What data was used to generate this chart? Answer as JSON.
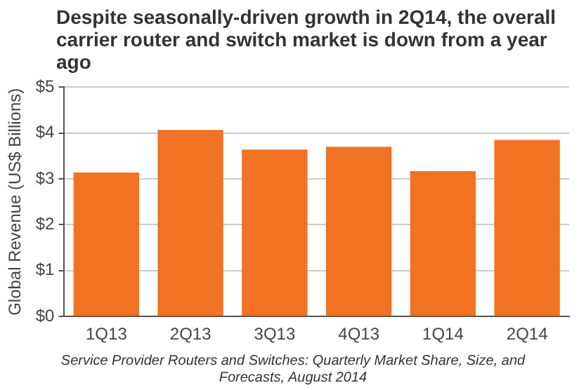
{
  "chart_data": {
    "type": "bar",
    "title": "Despite seasonally-driven growth in 2Q14, the overall carrier router and switch market is down from a year ago",
    "ylabel": "Global Revenue (US$ Billions)",
    "categories": [
      "1Q13",
      "2Q13",
      "3Q13",
      "4Q13",
      "1Q14",
      "2Q14"
    ],
    "values": [
      3.14,
      4.07,
      3.64,
      3.7,
      3.17,
      3.85
    ],
    "color": "#f07222",
    "ylim": [
      0,
      5
    ],
    "yticks": [
      {
        "value": 0,
        "label": "$0"
      },
      {
        "value": 1,
        "label": "$1"
      },
      {
        "value": 2,
        "label": "$2"
      },
      {
        "value": 3,
        "label": "$3"
      },
      {
        "value": 4,
        "label": "$4"
      },
      {
        "value": 5,
        "label": "$5"
      }
    ],
    "grid": "y",
    "annotations": [
      "Service Provider Routers and Switches: Quarterly Market Share, Size, and Forecasts, August 2014"
    ]
  }
}
